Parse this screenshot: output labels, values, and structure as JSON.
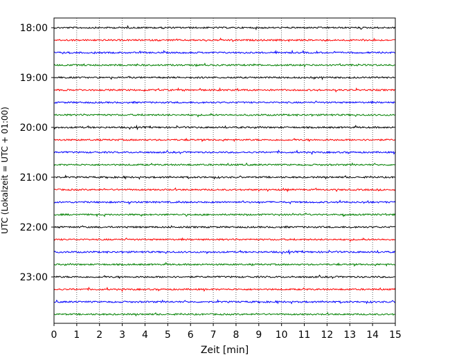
{
  "chart_data": {
    "type": "line",
    "title": "",
    "xlabel": "Zeit  [min]",
    "ylabel": "UTC (Lokalzeit = UTC + 01:00)",
    "xlim": [
      0,
      15
    ],
    "x_ticks": [
      0,
      1,
      2,
      3,
      4,
      5,
      6,
      7,
      8,
      9,
      10,
      11,
      12,
      13,
      14,
      15
    ],
    "y_ticks": [
      "18:00",
      "19:00",
      "20:00",
      "21:00",
      "22:00",
      "23:00"
    ],
    "trace_start_times": [
      "18:00",
      "18:15",
      "18:30",
      "18:45",
      "19:00",
      "19:15",
      "19:30",
      "19:45",
      "20:00",
      "20:15",
      "20:30",
      "20:45",
      "21:00",
      "21:15",
      "21:30",
      "21:45",
      "22:00",
      "22:15",
      "22:30",
      "22:45",
      "23:00",
      "23:15",
      "23:30",
      "23:45"
    ],
    "trace_colors": [
      "#000000",
      "#ff0000",
      "#0000ff",
      "#008000"
    ],
    "grid": "vertical dotted",
    "legend": "none"
  }
}
